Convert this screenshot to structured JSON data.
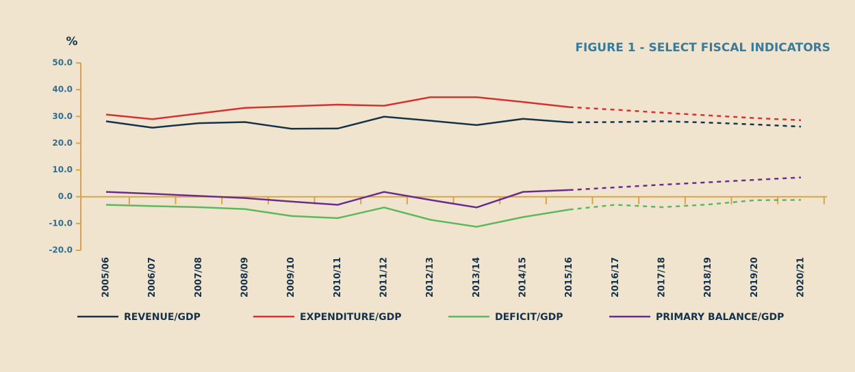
{
  "chart_data": {
    "type": "line",
    "title": "FIGURE 1 - SELECT FISCAL INDICATORS",
    "y_label": "%",
    "categories": [
      "2005/06",
      "2006/07",
      "2007/08",
      "2008/09",
      "2009/10",
      "2010/11",
      "2011/12",
      "2012/13",
      "2013/14",
      "2014/15",
      "2015/16",
      "2016/17",
      "2017/18",
      "2018/19",
      "2019/20",
      "2020/21"
    ],
    "projection_start": "2015/16",
    "series": [
      {
        "name": "REVENUE/GDP",
        "color": "#14324a",
        "values": [
          28.2,
          25.8,
          27.5,
          27.9,
          25.4,
          25.5,
          29.9,
          28.4,
          26.8,
          29.1,
          27.8,
          27.9,
          28.2,
          27.7,
          27.0,
          26.2
        ]
      },
      {
        "name": "EXPENDITURE/GDP",
        "color": "#d63030",
        "values": [
          30.7,
          29.0,
          31.1,
          33.2,
          33.8,
          34.4,
          34.0,
          37.2,
          37.2,
          35.4,
          33.5,
          32.5,
          31.4,
          30.4,
          29.4,
          28.6
        ]
      },
      {
        "name": "DEFICIT/GDP",
        "color": "#5cb85c",
        "values": [
          -3.0,
          -3.5,
          -3.9,
          -4.6,
          -7.2,
          -8.0,
          -4.0,
          -8.6,
          -11.2,
          -7.6,
          -4.8,
          -3.0,
          -3.9,
          -2.9,
          -1.3,
          -1.2
        ]
      },
      {
        "name": "PRIMARY BALANCE/GDP",
        "color": "#6a2c8a",
        "values": [
          1.8,
          1.1,
          0.3,
          -0.5,
          -1.8,
          -3.0,
          1.8,
          -1.2,
          -4.0,
          1.8,
          2.5,
          3.5,
          4.5,
          5.4,
          6.3,
          7.2
        ]
      }
    ],
    "ylim": [
      -20,
      50
    ],
    "yticks": [
      {
        "value": -20,
        "label": "-20.0"
      },
      {
        "value": -10,
        "label": "-10.0"
      },
      {
        "value": 0,
        "label": "0.0"
      },
      {
        "value": 10,
        "label": "10.0"
      },
      {
        "value": 20,
        "label": "20.0"
      },
      {
        "value": 30,
        "label": "30.0"
      },
      {
        "value": 40,
        "label": "40.0"
      },
      {
        "value": 50,
        "label": "50.0"
      }
    ],
    "axis_color": "#d9a441"
  }
}
